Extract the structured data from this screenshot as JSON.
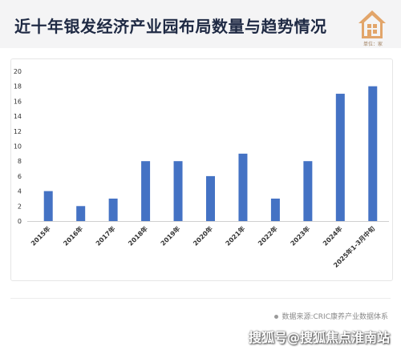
{
  "header": {
    "title": "近十年银发经济产业园布局数量与趋势情况",
    "logo_caption": "单位：家"
  },
  "footer": {
    "source": "数据来源:CRIC康养产业数据体系",
    "watermark": "搜狐号@搜狐焦点淮南站"
  },
  "colors": {
    "bar": "#4472c4",
    "title": "#1f2a44",
    "logo": "#e2a56a"
  },
  "chart_data": {
    "type": "bar",
    "title": "",
    "xlabel": "",
    "ylabel": "",
    "categories": [
      "2015年",
      "2016年",
      "2017年",
      "2018年",
      "2019年",
      "2020年",
      "2021年",
      "2022年",
      "2023年",
      "2024年",
      "2025年1-3月中旬"
    ],
    "values": [
      4,
      2,
      3,
      8,
      8,
      6,
      9,
      3,
      8,
      17,
      18
    ],
    "ylim": [
      0,
      20
    ],
    "yticks": [
      0,
      2,
      4,
      6,
      8,
      10,
      12,
      14,
      16,
      18,
      20
    ],
    "grid": false,
    "legend": "none"
  }
}
